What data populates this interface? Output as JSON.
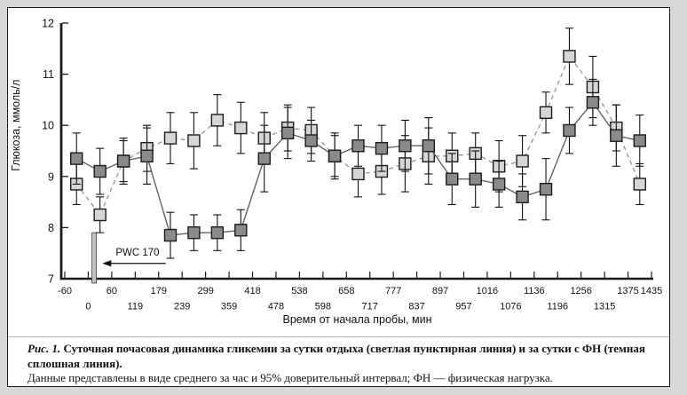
{
  "figure": {
    "caption_label": "Рис. 1.",
    "caption_title": "Суточная почасовая динамика гликемии за сутки отдыха (светлая пунктирная линия) и за сутки с ФН (темная сплошная линия).",
    "caption_note": "Данные представлены в виде среднего за час и 95% доверительный интервал; ФН — физическая нагрузка."
  },
  "chart_data": {
    "type": "line",
    "title": "",
    "xlabel": "Время от начала пробы, мин",
    "ylabel": "Глюкоза, ммоль/л",
    "ylim": [
      7,
      12
    ],
    "yticks": [
      7,
      8,
      9,
      10,
      11,
      12
    ],
    "xticks": [
      -60,
      0,
      60,
      119,
      179,
      239,
      299,
      359,
      418,
      478,
      538,
      598,
      658,
      717,
      777,
      837,
      897,
      957,
      1016,
      1076,
      1136,
      1196,
      1256,
      1315,
      1375,
      1435
    ],
    "xtick_label_rows": [
      1,
      2,
      1,
      2,
      1,
      2,
      1,
      2,
      1,
      2,
      1,
      2,
      1,
      2,
      1,
      2,
      1,
      2,
      1,
      2,
      1,
      2,
      1,
      2,
      1,
      1
    ],
    "grid": false,
    "legend_position": "none (series described in caption)",
    "points_note": "25 hourly means, each plotted midway between consecutive time ticks; whiskers = 95% CI",
    "series": [
      {
        "name": "сутки отдыха (светлая пунктирная линия)",
        "style": "dashed",
        "marker": "square",
        "marker_fill": "#d6d6d6",
        "line_color": "#9a9a9a",
        "values": [
          8.85,
          8.25,
          9.3,
          9.55,
          9.75,
          9.7,
          10.1,
          9.95,
          9.75,
          9.95,
          9.9,
          9.4,
          9.05,
          9.1,
          9.25,
          9.4,
          9.4,
          9.45,
          9.2,
          9.3,
          10.25,
          11.35,
          10.75,
          9.95,
          8.85
        ],
        "ci": [
          0.4,
          0.35,
          0.4,
          0.45,
          0.5,
          0.55,
          0.5,
          0.5,
          0.5,
          0.45,
          0.45,
          0.45,
          0.45,
          0.45,
          0.55,
          0.55,
          0.45,
          0.4,
          0.5,
          0.5,
          0.4,
          0.55,
          0.6,
          0.45,
          0.4
        ]
      },
      {
        "name": "сутки с ФН (темная сплошная линия)",
        "style": "solid",
        "marker": "square",
        "marker_fill": "#8a8a8a",
        "line_color": "#636363",
        "values": [
          9.35,
          9.1,
          9.3,
          9.4,
          7.85,
          7.9,
          7.9,
          7.95,
          9.35,
          9.85,
          9.7,
          9.4,
          9.6,
          9.55,
          9.6,
          9.6,
          8.95,
          8.95,
          8.85,
          8.6,
          8.75,
          9.9,
          10.45,
          9.8,
          9.7
        ],
        "ci": [
          0.5,
          0.45,
          0.45,
          0.55,
          0.45,
          0.35,
          0.35,
          0.4,
          0.65,
          0.5,
          0.4,
          0.4,
          0.4,
          0.45,
          0.5,
          0.55,
          0.5,
          0.55,
          0.45,
          0.45,
          0.6,
          0.45,
          0.45,
          0.6,
          0.5
        ]
      }
    ],
    "annotation": {
      "label": "PWC 170",
      "bar_tick_index": 1.25,
      "bar_top_value": 7.9,
      "arrow_value": 7.3,
      "arrow_from_tick": 4.3,
      "arrow_to_tick": 1.6,
      "label_tick": 3.1,
      "label_value": 7.45
    },
    "colors": {
      "axis": "#1a1a1a",
      "error_bar": "#111111",
      "marker_stroke": "#1c1c1c",
      "pwc_bar_fill": "#c0c0c0",
      "pwc_bar_stroke": "#444444"
    }
  }
}
